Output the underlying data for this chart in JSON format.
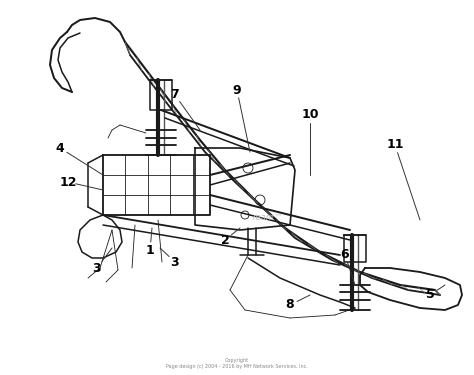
{
  "background_color": "#ffffff",
  "line_color": "#1a1a1a",
  "label_color": "#000000",
  "figsize": [
    4.74,
    3.75
  ],
  "dpi": 100,
  "copyright_text": "Copyright\nPage design (c) 2004 - 2016 by MH Network Services, Inc.",
  "watermark_text": "ream™",
  "blade_hatch_color": "#555555",
  "blade_hatch_lw": 0.5,
  "main_lw": 1.1,
  "thin_lw": 0.6
}
